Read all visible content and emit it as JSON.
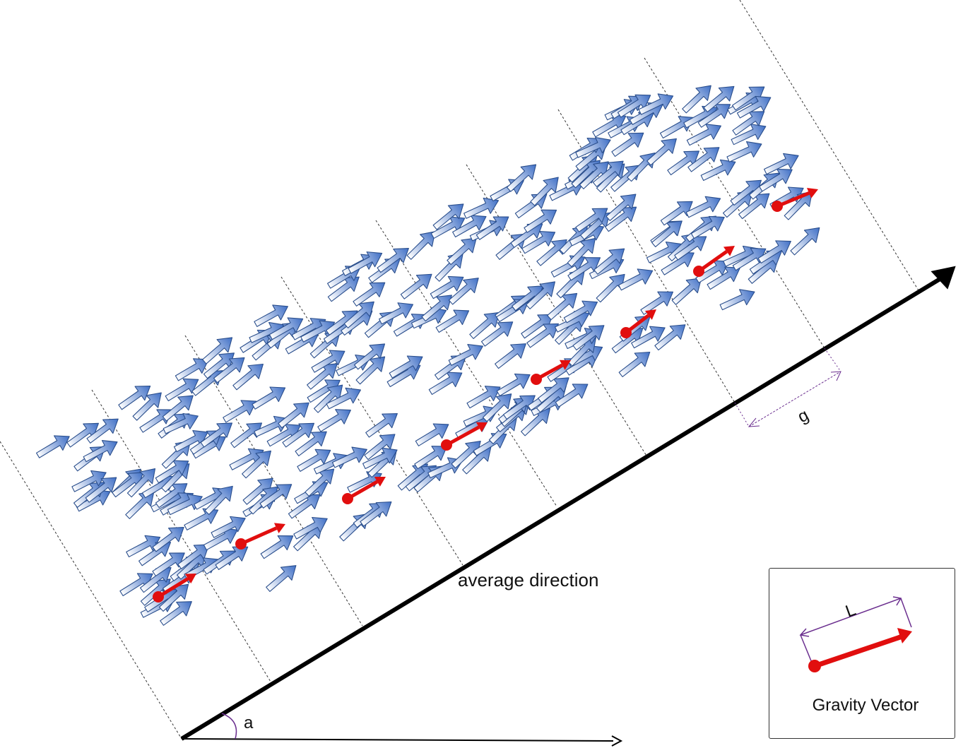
{
  "labels": {
    "average_direction": "average direction",
    "angle": "a",
    "gap": "g",
    "length": "L",
    "legend_title": "Gravity Vector"
  },
  "colors": {
    "flow_arrow_fill_start": "#ffffff",
    "flow_arrow_fill_end": "#3f6fc6",
    "flow_arrow_stroke": "#2a4e8c",
    "gravity_vector": "#e10e0e",
    "dimension_line": "#6b2f8f",
    "axis": "#000000",
    "bin_boundary": "#333333"
  },
  "icons": {
    "flow_arrow": "block-arrow-icon",
    "gravity_vector": "red-dot-arrow-icon"
  }
}
